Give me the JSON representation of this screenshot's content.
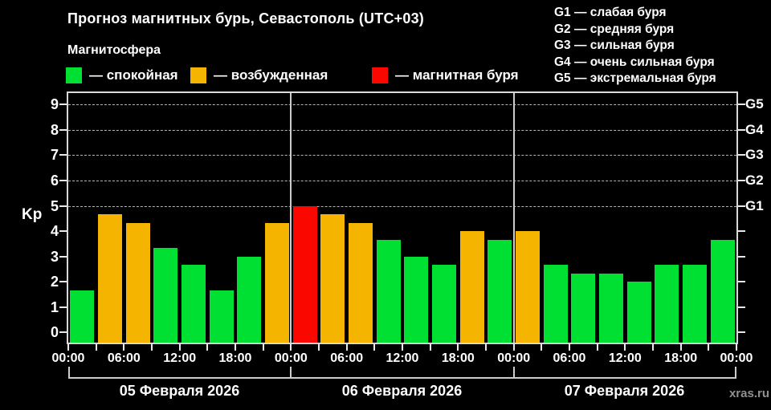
{
  "title": "Прогноз магнитных бурь, Севастополь (UTC+03)",
  "subtitle": "Магнитосфера",
  "legend": {
    "quiet": "— спокойная",
    "excited": "— возбужденная",
    "storm": "— магнитная буря"
  },
  "g_legend": [
    "G1 — слабая буря",
    "G2 — средняя буря",
    "G3 — сильная буря",
    "G4 — очень сильная буря",
    "G5 — экстремальная буря"
  ],
  "watermark": "xras.ru",
  "colors": {
    "quiet": "#00e032",
    "excited": "#f5b400",
    "storm": "#fa0800",
    "axis": "#d9d9d9",
    "grid": "#b4b4b4",
    "separator": "#cccccc",
    "text": "#ffffff",
    "watermark": "#909090",
    "background": "#000000"
  },
  "chart_data": {
    "type": "bar",
    "title": "Прогноз магнитных бурь, Севастополь (UTC+03)",
    "ylabel": "Kp",
    "ylim": [
      -0.4,
      9.45
    ],
    "y_ticks": [
      0,
      1,
      2,
      3,
      4,
      5,
      6,
      7,
      8,
      9
    ],
    "grid_kp": [
      5,
      6,
      7,
      8,
      9
    ],
    "right_axis": [
      {
        "kp": 5,
        "label": "G1"
      },
      {
        "kp": 6,
        "label": "G2"
      },
      {
        "kp": 7,
        "label": "G3"
      },
      {
        "kp": 8,
        "label": "G4"
      },
      {
        "kp": 9,
        "label": "G5"
      }
    ],
    "interval_hours": 3,
    "x_tick_labels": [
      "00:00",
      "06:00",
      "12:00",
      "18:00",
      "00:00",
      "06:00",
      "12:00",
      "18:00",
      "00:00",
      "06:00",
      "12:00",
      "18:00",
      "00:00"
    ],
    "thresholds": {
      "excited_min": 4,
      "storm_min": 5
    },
    "grid": "dashed horizontal lines at Kp 5-9 only",
    "legend_position": "top",
    "days": [
      {
        "date": "05 Февраля 2026",
        "values": [
          1.67,
          4.67,
          4.33,
          3.33,
          2.67,
          1.67,
          3.0,
          4.33
        ]
      },
      {
        "date": "06 Февраля 2026",
        "values": [
          5.0,
          4.67,
          4.33,
          3.67,
          3.0,
          2.67,
          4.0,
          3.67
        ]
      },
      {
        "date": "07 Февраля 2026",
        "values": [
          4.0,
          2.67,
          2.33,
          2.33,
          2.0,
          2.67,
          2.67,
          3.67
        ]
      }
    ]
  }
}
